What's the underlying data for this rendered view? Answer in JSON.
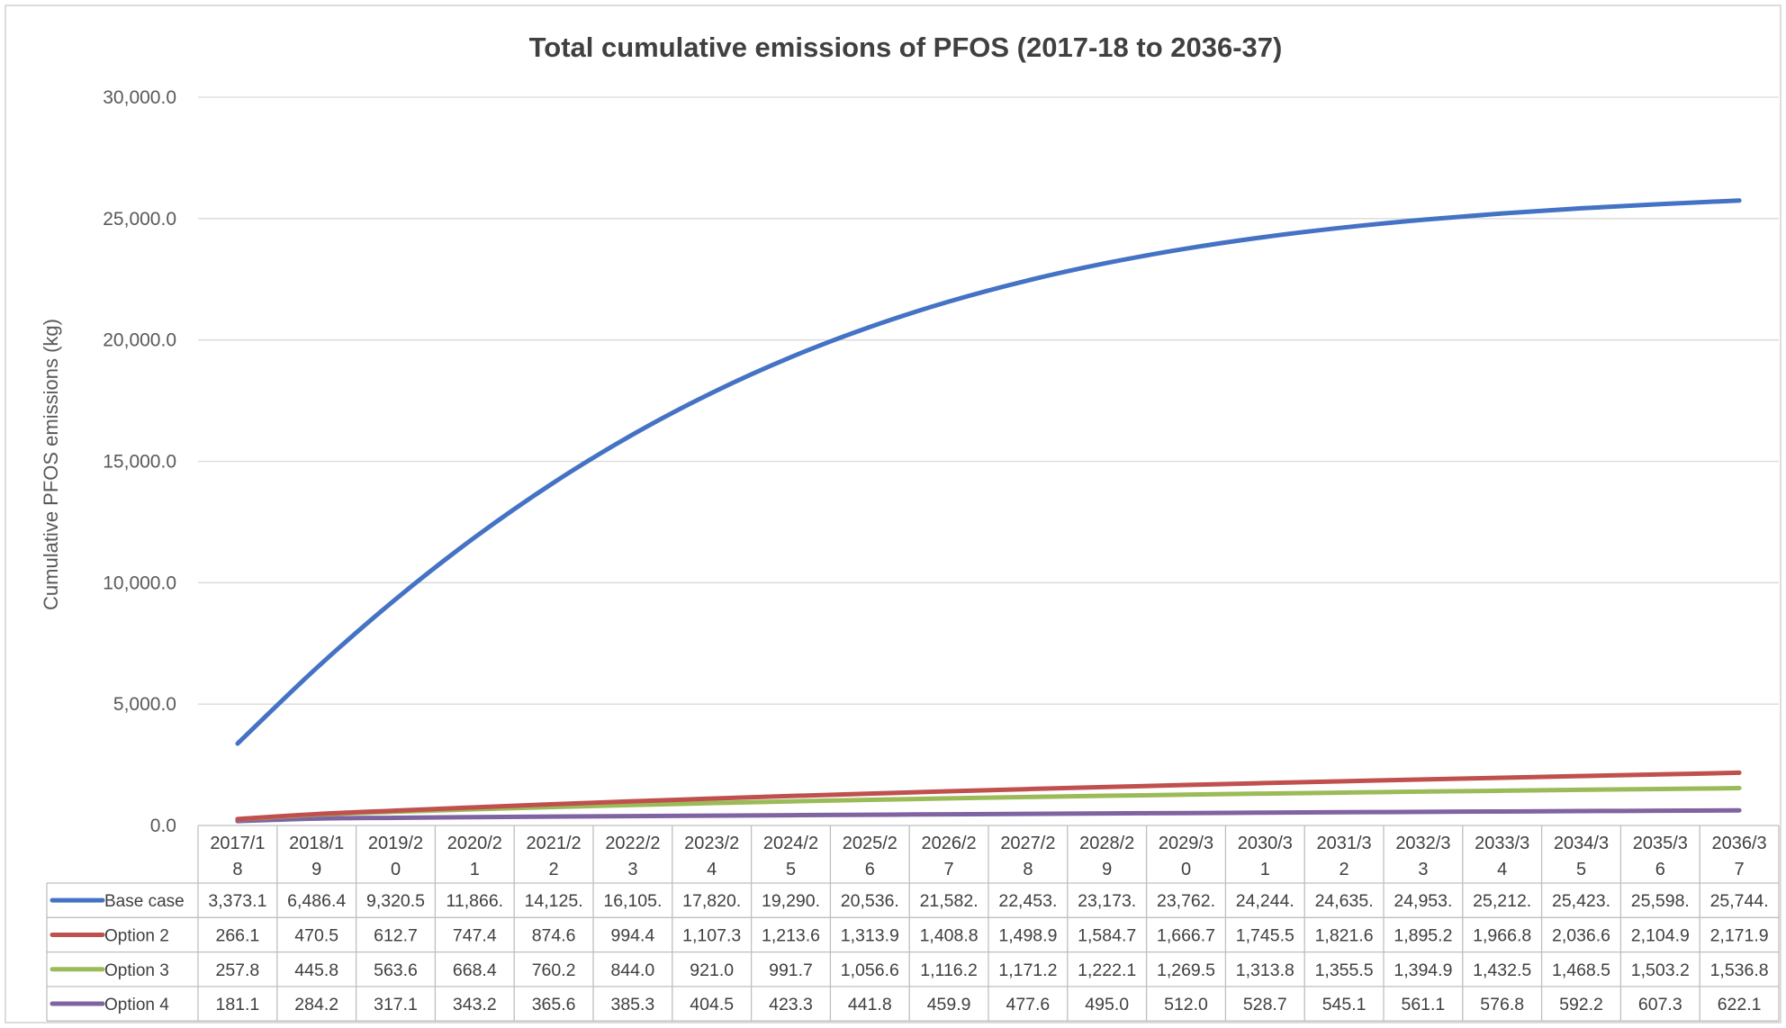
{
  "chart_data": {
    "type": "line",
    "title": "Total cumulative emissions of PFOS (2017-18 to 2036-37)",
    "xlabel": "",
    "ylabel": "Cumulative PFOS emissions (kg)",
    "ylim": [
      0,
      30000
    ],
    "yticks": [
      "0.0",
      "5,000.0",
      "10,000.0",
      "15,000.0",
      "20,000.0",
      "25,000.0",
      "30,000.0"
    ],
    "grid": true,
    "legend_position": "data-table",
    "categories": [
      [
        "2017/1",
        "8"
      ],
      [
        "2018/1",
        "9"
      ],
      [
        "2019/2",
        "0"
      ],
      [
        "2020/2",
        "1"
      ],
      [
        "2021/2",
        "2"
      ],
      [
        "2022/2",
        "3"
      ],
      [
        "2023/2",
        "4"
      ],
      [
        "2024/2",
        "5"
      ],
      [
        "2025/2",
        "6"
      ],
      [
        "2026/2",
        "7"
      ],
      [
        "2027/2",
        "8"
      ],
      [
        "2028/2",
        "9"
      ],
      [
        "2029/3",
        "0"
      ],
      [
        "2030/3",
        "1"
      ],
      [
        "2031/3",
        "2"
      ],
      [
        "2032/3",
        "3"
      ],
      [
        "2033/3",
        "4"
      ],
      [
        "2034/3",
        "5"
      ],
      [
        "2035/3",
        "6"
      ],
      [
        "2036/3",
        "7"
      ]
    ],
    "series": [
      {
        "name": "Base case",
        "color": "#4472c4",
        "values": [
          3373.1,
          6486.4,
          9320.5,
          11866,
          14125,
          16105,
          17820,
          19290,
          20536,
          21582,
          22453,
          23173,
          23762,
          24244,
          24635,
          24953,
          25212,
          25423,
          25598,
          25744
        ],
        "labels": [
          "3,373.1",
          "6,486.4",
          "9,320.5",
          "11,866.",
          "14,125.",
          "16,105.",
          "17,820.",
          "19,290.",
          "20,536.",
          "21,582.",
          "22,453.",
          "23,173.",
          "23,762.",
          "24,244.",
          "24,635.",
          "24,953.",
          "25,212.",
          "25,423.",
          "25,598.",
          "25,744."
        ]
      },
      {
        "name": "Option 2",
        "color": "#c0504d",
        "values": [
          266.1,
          470.5,
          612.7,
          747.4,
          874.6,
          994.4,
          1107.3,
          1213.6,
          1313.9,
          1408.8,
          1498.9,
          1584.7,
          1666.7,
          1745.5,
          1821.6,
          1895.2,
          1966.8,
          2036.6,
          2104.9,
          2171.9
        ],
        "labels": [
          "266.1",
          "470.5",
          "612.7",
          "747.4",
          "874.6",
          "994.4",
          "1,107.3",
          "1,213.6",
          "1,313.9",
          "1,408.8",
          "1,498.9",
          "1,584.7",
          "1,666.7",
          "1,745.5",
          "1,821.6",
          "1,895.2",
          "1,966.8",
          "2,036.6",
          "2,104.9",
          "2,171.9"
        ]
      },
      {
        "name": "Option 3",
        "color": "#9bbb59",
        "values": [
          257.8,
          445.8,
          563.6,
          668.4,
          760.2,
          844.0,
          921.0,
          991.7,
          1056.6,
          1116.2,
          1171.2,
          1222.1,
          1269.5,
          1313.8,
          1355.5,
          1394.9,
          1432.5,
          1468.5,
          1503.2,
          1536.8
        ],
        "labels": [
          "257.8",
          "445.8",
          "563.6",
          "668.4",
          "760.2",
          "844.0",
          "921.0",
          "991.7",
          "1,056.6",
          "1,116.2",
          "1,171.2",
          "1,222.1",
          "1,269.5",
          "1,313.8",
          "1,355.5",
          "1,394.9",
          "1,432.5",
          "1,468.5",
          "1,503.2",
          "1,536.8"
        ]
      },
      {
        "name": "Option 4",
        "color": "#8064a2",
        "values": [
          181.1,
          284.2,
          317.1,
          343.2,
          365.6,
          385.3,
          404.5,
          423.3,
          441.8,
          459.9,
          477.6,
          495.0,
          512.0,
          528.7,
          545.1,
          561.1,
          576.8,
          592.2,
          607.3,
          622.1
        ],
        "labels": [
          "181.1",
          "284.2",
          "317.1",
          "343.2",
          "365.6",
          "385.3",
          "404.5",
          "423.3",
          "441.8",
          "459.9",
          "477.6",
          "495.0",
          "512.0",
          "528.7",
          "545.1",
          "561.1",
          "576.8",
          "592.2",
          "607.3",
          "622.1"
        ]
      }
    ]
  }
}
